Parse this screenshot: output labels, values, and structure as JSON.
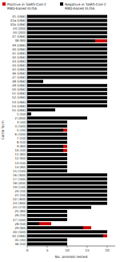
{
  "chart_data": {
    "type": "bar",
    "orientation": "horizontal",
    "stacked": true,
    "xlabel": "No. animals tested",
    "ylabel": "Cattle farm",
    "categories": [
      "31 (UNK)",
      "31a (UNK)",
      "31b (UNK)",
      "33 (200)",
      "34 (200)",
      "37 (UNK)",
      "38 (80)",
      "39 (UNK)",
      "40 (UNK)",
      "41 (UNK)",
      "42 (UNK)",
      "43 (UNK)",
      "44 (UNK)",
      "45 (UNK)",
      "46 (UNK)",
      "47 (UNK)",
      "48 (UNK)",
      "49 (UNK)",
      "50 (UNK)",
      "51 (UNK)",
      "52 (UNK)",
      "53 (UNK)",
      "54 (UNK)",
      "55 (UNK)",
      "1 (50)",
      "2 (200)",
      "3 (40)",
      "4 (100)",
      "5 (30)",
      "6 (100)",
      "7 (50)",
      "8 (50)",
      "9 (80)",
      "10 (40)",
      "11 (80)",
      "12 (60)",
      "13 (50)",
      "14 (80)",
      "15 (130)",
      "16 (300)",
      "17 (100)",
      "18 (200)",
      "19 (130)",
      "20 (50)",
      "21 (50)",
      "22 (300)",
      "23 (300)",
      "24 (170)",
      "25 (80)",
      "26 (50)",
      "27 (100)",
      "28 (50)",
      "29 (80)",
      "30 (100)",
      "32 (UNK)",
      "35 (30)",
      "36 (50)"
    ],
    "series": [
      {
        "name": "Negative in SARS-CoV-2\nRBD-based ELISA",
        "color": "#000000",
        "values": [
          20,
          20,
          20,
          20,
          20,
          20,
          17,
          20,
          20,
          20,
          20,
          20,
          20,
          20,
          20,
          20,
          4,
          20,
          20,
          20,
          20,
          20,
          20,
          7,
          1,
          15,
          10,
          10,
          9,
          10,
          10,
          10,
          9,
          9,
          10,
          10,
          10,
          10,
          10,
          20,
          20,
          20,
          20,
          20,
          20,
          20,
          20,
          16,
          10,
          10,
          10,
          3,
          14,
          20,
          19,
          10,
          10
        ]
      },
      {
        "name": "Positive in SARS-CoV-2\nRBD-based ELISA",
        "color": "#cc0000",
        "values": [
          0,
          0,
          0,
          0,
          0,
          0,
          3,
          0,
          0,
          0,
          0,
          0,
          0,
          0,
          0,
          0,
          0,
          0,
          0,
          0,
          0,
          0,
          0,
          0,
          0,
          0,
          0,
          0,
          1,
          0,
          0,
          0,
          1,
          1,
          0,
          0,
          0,
          0,
          0,
          0,
          0,
          0,
          0,
          0,
          0,
          0,
          0,
          0,
          0,
          0,
          0,
          3,
          2,
          0,
          1,
          0,
          0
        ]
      }
    ],
    "xlim": [
      0,
      22
    ],
    "xticks": [
      0,
      5,
      10,
      15,
      20
    ],
    "legend": "upper right"
  }
}
